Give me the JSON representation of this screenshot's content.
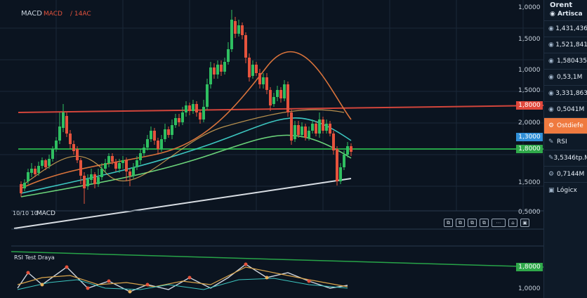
{
  "chart": {
    "title": "MACD",
    "subtitle_red": "MACD",
    "subtitle_white": "/ 14AC",
    "macd_label": "MACD",
    "macd_prefix": "10/10 10",
    "rsi_label": "RSI Test Draya",
    "axis_labels": [
      "1,0000",
      "1,5000",
      "1,0000",
      "1,5000",
      "2,0000",
      "1,5000",
      "0,5000"
    ],
    "lower_axis_labels": [
      "1,0000",
      "1,0000"
    ],
    "price_tags": [
      {
        "text": "1,8000",
        "color": "#e0483c"
      },
      {
        "text": "1,3000",
        "color": "#2f8fd8"
      },
      {
        "text": "1,8000",
        "color": "#2fa84a"
      },
      {
        "text": "1,8000",
        "color": "#2fa84a"
      }
    ],
    "colors": {
      "up": "#2fbf61",
      "down": "#e5533d",
      "resistance": "#d2453b",
      "support": "#27a448",
      "ma_orange": "#d9733b",
      "ma_teal": "#3cc6c0",
      "ma_green": "#6bd47a",
      "trend": "#d8dde3"
    }
  },
  "sidebar": {
    "title": "Orent",
    "subtitle": "Artisca",
    "items": [
      {
        "icon": "eye-icon",
        "glyph": "◉",
        "label": "1,431,436"
      },
      {
        "icon": "eye-icon",
        "glyph": "◉",
        "label": "1,521,841"
      },
      {
        "icon": "eye-icon",
        "glyph": "◉",
        "label": "1,580435"
      },
      {
        "icon": "eye-icon",
        "glyph": "◉",
        "label": "0,53,1M"
      },
      {
        "icon": "eye-icon",
        "glyph": "◉",
        "label": "3,331,863"
      },
      {
        "icon": "eye-icon",
        "glyph": "◉",
        "label": "0,5041M"
      }
    ],
    "active": {
      "icon": "settings-icon",
      "glyph": "⚙",
      "label": "Ostdiefe"
    },
    "rsi": {
      "icon": "pencil-icon",
      "glyph": "✎",
      "label": "RSI"
    },
    "bottom": [
      {
        "icon": "pencil-icon",
        "glyph": "✎",
        "label": "3,5346tp.M"
      },
      {
        "icon": "settings-icon",
        "glyph": "⚙",
        "label": "0,7144M"
      },
      {
        "icon": "menu-icon",
        "glyph": "▣",
        "label": "Lógicx"
      }
    ]
  },
  "toolbar": [
    "⧉",
    "⧉",
    "⧉",
    "⧉",
    "⋯",
    "⌂",
    "▣"
  ],
  "candles": [
    [
      30,
      262,
      275,
      258,
      280
    ],
    [
      35,
      268,
      260,
      255,
      272
    ],
    [
      40,
      258,
      245,
      240,
      262
    ],
    [
      45,
      246,
      240,
      232,
      252
    ],
    [
      50,
      240,
      248,
      236,
      252
    ],
    [
      55,
      246,
      236,
      230,
      250
    ],
    [
      60,
      236,
      228,
      224,
      240
    ],
    [
      65,
      228,
      238,
      226,
      242
    ],
    [
      70,
      236,
      226,
      220,
      240
    ],
    [
      75,
      226,
      212,
      208,
      230
    ],
    [
      80,
      212,
      200,
      195,
      216
    ],
    [
      85,
      200,
      180,
      160,
      205
    ],
    [
      90,
      182,
      160,
      148,
      188
    ],
    [
      95,
      165,
      190,
      160,
      195
    ],
    [
      100,
      190,
      205,
      185,
      212
    ],
    [
      105,
      205,
      215,
      200,
      220
    ],
    [
      110,
      212,
      228,
      208,
      232
    ],
    [
      115,
      228,
      250,
      225,
      262
    ],
    [
      120,
      250,
      268,
      245,
      290
    ],
    [
      125,
      265,
      255,
      248,
      270
    ],
    [
      130,
      256,
      248,
      240,
      262
    ],
    [
      135,
      248,
      262,
      245,
      268
    ],
    [
      140,
      262,
      252,
      240,
      266
    ],
    [
      145,
      252,
      240,
      232,
      256
    ],
    [
      150,
      240,
      232,
      226,
      246
    ],
    [
      155,
      232,
      222,
      218,
      238
    ],
    [
      160,
      222,
      230,
      218,
      234
    ],
    [
      165,
      230,
      240,
      226,
      244
    ],
    [
      170,
      240,
      232,
      226,
      246
    ],
    [
      175,
      232,
      228,
      222,
      240
    ],
    [
      180,
      228,
      244,
      224,
      258
    ],
    [
      185,
      244,
      250,
      240,
      265
    ],
    [
      190,
      250,
      238,
      232,
      254
    ],
    [
      195,
      238,
      228,
      222,
      242
    ],
    [
      200,
      228,
      218,
      212,
      234
    ],
    [
      205,
      218,
      210,
      205,
      222
    ],
    [
      210,
      210,
      198,
      192,
      214
    ],
    [
      215,
      198,
      186,
      180,
      202
    ],
    [
      220,
      186,
      200,
      182,
      206
    ],
    [
      225,
      200,
      212,
      196,
      220
    ],
    [
      230,
      212,
      198,
      192,
      216
    ],
    [
      235,
      198,
      184,
      176,
      202
    ],
    [
      240,
      184,
      192,
      180,
      196
    ],
    [
      245,
      192,
      178,
      170,
      198
    ],
    [
      250,
      178,
      168,
      162,
      182
    ],
    [
      255,
      168,
      174,
      162,
      180
    ],
    [
      260,
      174,
      160,
      152,
      178
    ],
    [
      265,
      160,
      150,
      144,
      166
    ],
    [
      270,
      150,
      158,
      146,
      164
    ],
    [
      275,
      158,
      148,
      142,
      162
    ],
    [
      280,
      148,
      160,
      144,
      166
    ],
    [
      285,
      160,
      170,
      156,
      176
    ],
    [
      290,
      170,
      152,
      142,
      174
    ],
    [
      295,
      152,
      120,
      112,
      156
    ],
    [
      300,
      120,
      96,
      88,
      126
    ],
    [
      305,
      96,
      106,
      90,
      112
    ],
    [
      310,
      106,
      92,
      86,
      112
    ],
    [
      315,
      92,
      102,
      86,
      108
    ],
    [
      320,
      102,
      88,
      82,
      106
    ],
    [
      325,
      88,
      70,
      60,
      92
    ],
    [
      330,
      70,
      28,
      14,
      74
    ],
    [
      335,
      30,
      48,
      24,
      54
    ],
    [
      340,
      48,
      36,
      28,
      52
    ],
    [
      345,
      36,
      50,
      32,
      56
    ],
    [
      350,
      50,
      82,
      46,
      90
    ],
    [
      355,
      82,
      110,
      76,
      116
    ],
    [
      360,
      108,
      92,
      86,
      112
    ],
    [
      365,
      92,
      104,
      88,
      108
    ],
    [
      370,
      104,
      120,
      98,
      126
    ],
    [
      375,
      120,
      110,
      104,
      126
    ],
    [
      380,
      110,
      128,
      104,
      134
    ],
    [
      385,
      128,
      150,
      124,
      158
    ],
    [
      390,
      148,
      138,
      132,
      152
    ],
    [
      395,
      138,
      128,
      122,
      144
    ],
    [
      400,
      128,
      140,
      124,
      146
    ],
    [
      405,
      140,
      120,
      114,
      144
    ],
    [
      410,
      120,
      160,
      116,
      166
    ],
    [
      415,
      160,
      200,
      156,
      206
    ],
    [
      420,
      198,
      178,
      172,
      202
    ],
    [
      425,
      178,
      192,
      172,
      196
    ],
    [
      430,
      192,
      180,
      174,
      196
    ],
    [
      435,
      180,
      196,
      176,
      200
    ],
    [
      440,
      196,
      186,
      180,
      200
    ],
    [
      445,
      186,
      176,
      170,
      190
    ],
    [
      450,
      176,
      190,
      172,
      194
    ],
    [
      455,
      190,
      170,
      160,
      196
    ],
    [
      460,
      170,
      186,
      166,
      190
    ],
    [
      465,
      186,
      176,
      170,
      190
    ],
    [
      470,
      176,
      190,
      172,
      194
    ],
    [
      475,
      190,
      214,
      186,
      220
    ],
    [
      480,
      212,
      258,
      208,
      264
    ],
    [
      485,
      258,
      238,
      232,
      262
    ],
    [
      490,
      238,
      220,
      214,
      242
    ],
    [
      495,
      220,
      208,
      202,
      224
    ],
    [
      500,
      208,
      216,
      204,
      222
    ]
  ]
}
